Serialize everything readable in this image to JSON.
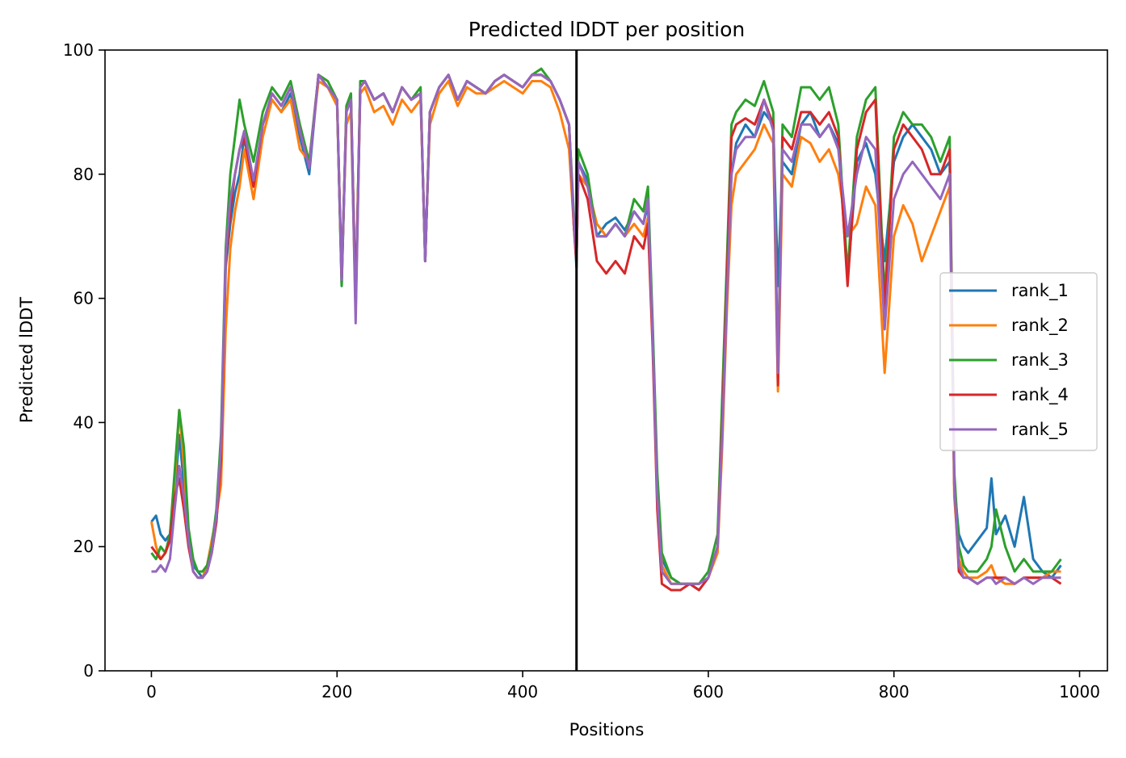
{
  "chart_data": {
    "type": "line",
    "title": "Predicted lDDT per position",
    "xlabel": "Positions",
    "ylabel": "Predicted lDDT",
    "xlim": [
      -50,
      1030
    ],
    "ylim": [
      0,
      100
    ],
    "xticks": [
      0,
      200,
      400,
      600,
      800,
      1000
    ],
    "yticks": [
      0,
      20,
      40,
      60,
      80,
      100
    ],
    "grid": false,
    "legend_position": "center-right",
    "vline": 458,
    "series": [
      {
        "name": "rank_1",
        "color": "#1f77b4",
        "x": [
          0,
          5,
          10,
          15,
          20,
          25,
          30,
          35,
          40,
          45,
          50,
          55,
          60,
          65,
          70,
          75,
          80,
          85,
          90,
          95,
          100,
          110,
          120,
          130,
          140,
          150,
          160,
          170,
          180,
          190,
          200,
          205,
          210,
          215,
          220,
          225,
          230,
          240,
          250,
          260,
          270,
          280,
          290,
          295,
          300,
          310,
          320,
          330,
          340,
          350,
          360,
          370,
          380,
          390,
          400,
          410,
          420,
          430,
          440,
          450,
          455,
          458,
          460,
          470,
          480,
          490,
          500,
          510,
          520,
          530,
          535,
          540,
          545,
          550,
          560,
          570,
          580,
          590,
          600,
          610,
          615,
          620,
          625,
          630,
          640,
          650,
          660,
          670,
          675,
          680,
          690,
          700,
          710,
          720,
          730,
          740,
          750,
          760,
          770,
          780,
          790,
          800,
          810,
          820,
          830,
          840,
          850,
          860,
          865,
          870,
          875,
          880,
          890,
          900,
          905,
          910,
          920,
          930,
          940,
          950,
          960,
          970,
          980
        ],
        "y": [
          24,
          25,
          22,
          21,
          22,
          28,
          38,
          30,
          22,
          17,
          16,
          15,
          16,
          19,
          24,
          35,
          65,
          72,
          77,
          80,
          86,
          78,
          88,
          92,
          90,
          93,
          86,
          80,
          96,
          94,
          92,
          62,
          90,
          92,
          60,
          94,
          95,
          92,
          93,
          90,
          94,
          92,
          93,
          66,
          90,
          94,
          96,
          92,
          95,
          94,
          93,
          95,
          96,
          95,
          94,
          96,
          96,
          95,
          92,
          88,
          72,
          65,
          82,
          79,
          70,
          72,
          73,
          71,
          74,
          72,
          75,
          55,
          30,
          18,
          15,
          14,
          14,
          13,
          15,
          20,
          40,
          62,
          80,
          85,
          88,
          86,
          90,
          88,
          62,
          82,
          80,
          88,
          90,
          86,
          88,
          85,
          63,
          82,
          85,
          80,
          66,
          82,
          86,
          88,
          86,
          84,
          80,
          82,
          30,
          22,
          20,
          19,
          21,
          23,
          31,
          22,
          25,
          20,
          28,
          18,
          16,
          15,
          17
        ]
      },
      {
        "name": "rank_2",
        "color": "#ff7f0e",
        "x": [
          0,
          5,
          10,
          15,
          20,
          25,
          30,
          35,
          40,
          45,
          50,
          55,
          60,
          65,
          70,
          75,
          80,
          85,
          90,
          95,
          100,
          110,
          120,
          130,
          140,
          150,
          160,
          170,
          180,
          190,
          200,
          205,
          210,
          215,
          220,
          225,
          230,
          240,
          250,
          260,
          270,
          280,
          290,
          295,
          300,
          310,
          320,
          330,
          340,
          350,
          360,
          370,
          380,
          390,
          400,
          410,
          420,
          430,
          440,
          450,
          455,
          458,
          460,
          470,
          480,
          490,
          500,
          510,
          520,
          530,
          535,
          540,
          545,
          550,
          560,
          570,
          580,
          590,
          600,
          610,
          615,
          620,
          625,
          630,
          640,
          650,
          660,
          670,
          675,
          680,
          690,
          700,
          710,
          720,
          730,
          740,
          750,
          760,
          770,
          780,
          790,
          800,
          810,
          820,
          830,
          840,
          850,
          860,
          865,
          870,
          875,
          880,
          890,
          900,
          905,
          910,
          920,
          930,
          940,
          950,
          960,
          970,
          980
        ],
        "y": [
          24,
          20,
          18,
          19,
          21,
          30,
          42,
          33,
          22,
          16,
          15,
          15,
          17,
          21,
          25,
          30,
          55,
          68,
          74,
          78,
          84,
          76,
          86,
          92,
          90,
          92,
          84,
          82,
          95,
          94,
          91,
          64,
          88,
          90,
          58,
          93,
          94,
          90,
          91,
          88,
          92,
          90,
          92,
          67,
          88,
          93,
          95,
          91,
          94,
          93,
          93,
          94,
          95,
          94,
          93,
          95,
          95,
          94,
          90,
          84,
          72,
          66,
          80,
          78,
          72,
          70,
          72,
          70,
          72,
          70,
          73,
          54,
          28,
          17,
          14,
          14,
          14,
          14,
          15,
          19,
          36,
          58,
          75,
          80,
          82,
          84,
          88,
          85,
          45,
          80,
          78,
          86,
          85,
          82,
          84,
          80,
          70,
          72,
          78,
          75,
          48,
          70,
          75,
          72,
          66,
          70,
          74,
          78,
          28,
          18,
          16,
          15,
          15,
          16,
          17,
          15,
          14,
          14,
          15,
          15,
          15,
          16,
          16
        ]
      },
      {
        "name": "rank_3",
        "color": "#2ca02c",
        "x": [
          0,
          5,
          10,
          15,
          20,
          25,
          30,
          35,
          40,
          45,
          50,
          55,
          60,
          65,
          70,
          75,
          80,
          85,
          90,
          95,
          100,
          110,
          120,
          130,
          140,
          150,
          160,
          170,
          180,
          190,
          200,
          205,
          210,
          215,
          220,
          225,
          230,
          240,
          250,
          260,
          270,
          280,
          290,
          295,
          300,
          310,
          320,
          330,
          340,
          350,
          360,
          370,
          380,
          390,
          400,
          410,
          420,
          430,
          440,
          450,
          455,
          458,
          460,
          470,
          480,
          490,
          500,
          510,
          520,
          530,
          535,
          540,
          545,
          550,
          560,
          570,
          580,
          590,
          600,
          610,
          615,
          620,
          625,
          630,
          640,
          650,
          660,
          670,
          675,
          680,
          690,
          700,
          710,
          720,
          730,
          740,
          750,
          760,
          770,
          780,
          790,
          800,
          810,
          820,
          830,
          840,
          850,
          860,
          865,
          870,
          875,
          880,
          890,
          900,
          905,
          910,
          920,
          930,
          940,
          950,
          960,
          970,
          980
        ],
        "y": [
          19,
          18,
          20,
          19,
          22,
          32,
          42,
          36,
          23,
          18,
          16,
          16,
          17,
          20,
          26,
          38,
          68,
          80,
          86,
          92,
          88,
          82,
          90,
          94,
          92,
          95,
          88,
          82,
          96,
          95,
          92,
          62,
          91,
          93,
          58,
          95,
          95,
          92,
          93,
          90,
          94,
          92,
          94,
          66,
          90,
          94,
          96,
          92,
          95,
          94,
          93,
          95,
          96,
          95,
          94,
          96,
          97,
          95,
          92,
          88,
          74,
          68,
          84,
          80,
          70,
          70,
          72,
          70,
          76,
          74,
          78,
          56,
          32,
          19,
          15,
          14,
          14,
          14,
          16,
          22,
          44,
          66,
          88,
          90,
          92,
          91,
          95,
          90,
          48,
          88,
          86,
          94,
          94,
          92,
          94,
          88,
          64,
          86,
          92,
          94,
          60,
          86,
          90,
          88,
          88,
          86,
          82,
          86,
          32,
          20,
          17,
          16,
          16,
          18,
          20,
          26,
          20,
          16,
          18,
          16,
          16,
          16,
          18
        ]
      },
      {
        "name": "rank_4",
        "color": "#d62728",
        "x": [
          0,
          5,
          10,
          15,
          20,
          25,
          30,
          35,
          40,
          45,
          50,
          55,
          60,
          65,
          70,
          75,
          80,
          85,
          90,
          95,
          100,
          110,
          120,
          130,
          140,
          150,
          160,
          170,
          180,
          190,
          200,
          205,
          210,
          215,
          220,
          225,
          230,
          240,
          250,
          260,
          270,
          280,
          290,
          295,
          300,
          310,
          320,
          330,
          340,
          350,
          360,
          370,
          380,
          390,
          400,
          410,
          420,
          430,
          440,
          450,
          455,
          458,
          460,
          470,
          480,
          490,
          500,
          510,
          520,
          530,
          535,
          540,
          545,
          550,
          560,
          570,
          580,
          590,
          600,
          610,
          615,
          620,
          625,
          630,
          640,
          650,
          660,
          670,
          675,
          680,
          690,
          700,
          710,
          720,
          730,
          740,
          750,
          760,
          770,
          780,
          790,
          800,
          810,
          820,
          830,
          840,
          850,
          860,
          865,
          870,
          875,
          880,
          890,
          900,
          905,
          910,
          920,
          930,
          940,
          950,
          960,
          970,
          980
        ],
        "y": [
          20,
          19,
          18,
          19,
          21,
          28,
          31,
          26,
          20,
          16,
          15,
          15,
          16,
          19,
          24,
          34,
          66,
          74,
          80,
          84,
          86,
          78,
          88,
          93,
          91,
          94,
          87,
          81,
          96,
          94,
          92,
          63,
          90,
          92,
          59,
          94,
          95,
          92,
          93,
          90,
          94,
          92,
          93,
          66,
          90,
          94,
          96,
          92,
          95,
          94,
          93,
          95,
          96,
          95,
          94,
          96,
          96,
          95,
          92,
          88,
          72,
          66,
          80,
          76,
          66,
          64,
          66,
          64,
          70,
          68,
          72,
          52,
          26,
          14,
          13,
          13,
          14,
          13,
          15,
          20,
          40,
          63,
          86,
          88,
          89,
          88,
          92,
          88,
          46,
          86,
          84,
          90,
          90,
          88,
          90,
          86,
          62,
          84,
          90,
          92,
          58,
          84,
          88,
          86,
          84,
          80,
          80,
          84,
          30,
          16,
          15,
          15,
          14,
          15,
          15,
          15,
          15,
          14,
          15,
          15,
          15,
          15,
          14
        ]
      },
      {
        "name": "rank_5",
        "color": "#9467bd",
        "x": [
          0,
          5,
          10,
          15,
          20,
          25,
          30,
          35,
          40,
          45,
          50,
          55,
          60,
          65,
          70,
          75,
          80,
          85,
          90,
          95,
          100,
          110,
          120,
          130,
          140,
          150,
          160,
          170,
          180,
          190,
          200,
          205,
          210,
          215,
          220,
          225,
          230,
          240,
          250,
          260,
          270,
          280,
          290,
          295,
          300,
          310,
          320,
          330,
          340,
          350,
          360,
          370,
          380,
          390,
          400,
          410,
          420,
          430,
          440,
          450,
          455,
          458,
          460,
          470,
          480,
          490,
          500,
          510,
          520,
          530,
          535,
          540,
          545,
          550,
          560,
          570,
          580,
          590,
          600,
          610,
          615,
          620,
          625,
          630,
          640,
          650,
          660,
          670,
          675,
          680,
          690,
          700,
          710,
          720,
          730,
          740,
          750,
          760,
          770,
          780,
          790,
          800,
          810,
          820,
          830,
          840,
          850,
          860,
          865,
          870,
          875,
          880,
          890,
          900,
          905,
          910,
          920,
          930,
          940,
          950,
          960,
          970,
          980
        ],
        "y": [
          16,
          16,
          17,
          16,
          18,
          26,
          33,
          28,
          21,
          16,
          15,
          15,
          16,
          19,
          25,
          36,
          67,
          76,
          80,
          84,
          87,
          79,
          88,
          93,
          91,
          94,
          87,
          81,
          96,
          94,
          92,
          63,
          90,
          92,
          56,
          94,
          95,
          92,
          93,
          90,
          94,
          92,
          93,
          66,
          90,
          94,
          96,
          92,
          95,
          94,
          93,
          95,
          96,
          95,
          94,
          96,
          96,
          95,
          92,
          88,
          73,
          67,
          82,
          78,
          70,
          70,
          72,
          70,
          74,
          72,
          76,
          54,
          28,
          16,
          14,
          14,
          14,
          14,
          15,
          20,
          38,
          60,
          80,
          84,
          86,
          86,
          92,
          87,
          48,
          84,
          82,
          88,
          88,
          86,
          88,
          84,
          70,
          80,
          86,
          84,
          55,
          76,
          80,
          82,
          80,
          78,
          76,
          80,
          30,
          17,
          15,
          15,
          14,
          15,
          15,
          14,
          15,
          14,
          15,
          14,
          15,
          15,
          15
        ]
      }
    ]
  }
}
